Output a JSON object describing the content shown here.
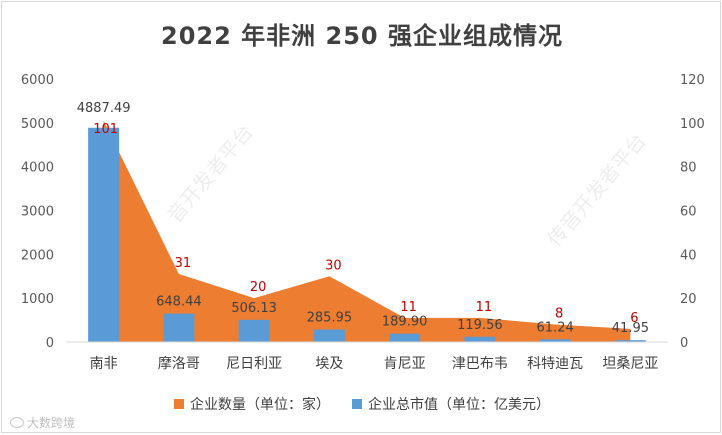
{
  "title": "2022 年非洲 250 强企业组成情况",
  "colors": {
    "count": "#ED7D31",
    "value": "#5B9BD5",
    "count_label": "#C00000"
  },
  "legend": {
    "count": "企业数量（单位：家）",
    "value": "企业总市值（单位：亿美元）"
  },
  "watermark": {
    "left": "音开发者平台",
    "right": "传音开发者平台"
  },
  "footer_logo": {
    "icon": "logo-mark-icon",
    "text": "大数跨境"
  },
  "chart_data": {
    "type": "bar",
    "combo": "bar + area, dual axis",
    "categories": [
      "南非",
      "摩洛哥",
      "尼日利亚",
      "埃及",
      "肯尼亚",
      "津巴布韦",
      "科特迪瓦",
      "坦桑尼亚"
    ],
    "series": [
      {
        "name": "企业总市值（单位：亿美元）",
        "type": "bar",
        "axis": "left",
        "values": [
          4887.49,
          648.44,
          506.13,
          285.95,
          189.9,
          119.56,
          61.24,
          41.95
        ],
        "labels": [
          "4887.49",
          "648.44",
          "506.13",
          "285.95",
          "189.90",
          "119.56",
          "61.24",
          "41.95"
        ]
      },
      {
        "name": "企业数量（单位：家）",
        "type": "area",
        "axis": "right",
        "values": [
          101,
          31,
          20,
          30,
          11,
          11,
          8,
          6
        ],
        "labels": [
          "101",
          "31",
          "20",
          "30",
          "11",
          "11",
          "8",
          "6"
        ]
      }
    ],
    "left_axis": {
      "ylim": [
        0,
        6000
      ],
      "ticks": [
        "0",
        "1000",
        "2000",
        "3000",
        "4000",
        "5000",
        "6000"
      ]
    },
    "right_axis": {
      "ylim": [
        0,
        120
      ],
      "ticks": [
        "0",
        "20",
        "40",
        "60",
        "80",
        "100",
        "120"
      ]
    },
    "grid": false,
    "legend_position": "bottom"
  }
}
